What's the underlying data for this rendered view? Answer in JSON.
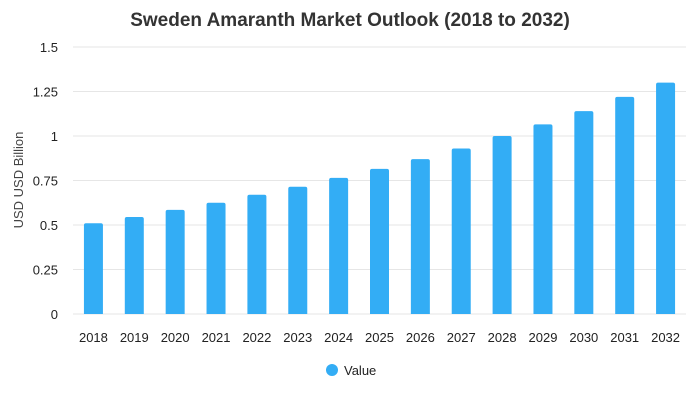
{
  "chart_data": {
    "type": "bar",
    "title": "Sweden Amaranth Market Outlook (2018 to 2032)",
    "xlabel": "",
    "ylabel": "USD USD Billion",
    "categories": [
      "2018",
      "2019",
      "2020",
      "2021",
      "2022",
      "2023",
      "2024",
      "2025",
      "2026",
      "2027",
      "2028",
      "2029",
      "2030",
      "2031",
      "2032"
    ],
    "series": [
      {
        "name": "Value",
        "values": [
          0.51,
          0.545,
          0.585,
          0.625,
          0.67,
          0.715,
          0.765,
          0.815,
          0.87,
          0.93,
          1.0,
          1.065,
          1.14,
          1.22,
          1.3
        ]
      }
    ],
    "ylim": [
      0,
      1.5
    ],
    "yticks": [
      0,
      0.25,
      0.5,
      0.75,
      1,
      1.25,
      1.5
    ],
    "ytick_labels": [
      "0",
      "0.25",
      "0.5",
      "0.75",
      "1",
      "1.25",
      "1.5"
    ],
    "grid": true,
    "legend_position": "bottom-center",
    "bar_color": "#33adf5"
  }
}
